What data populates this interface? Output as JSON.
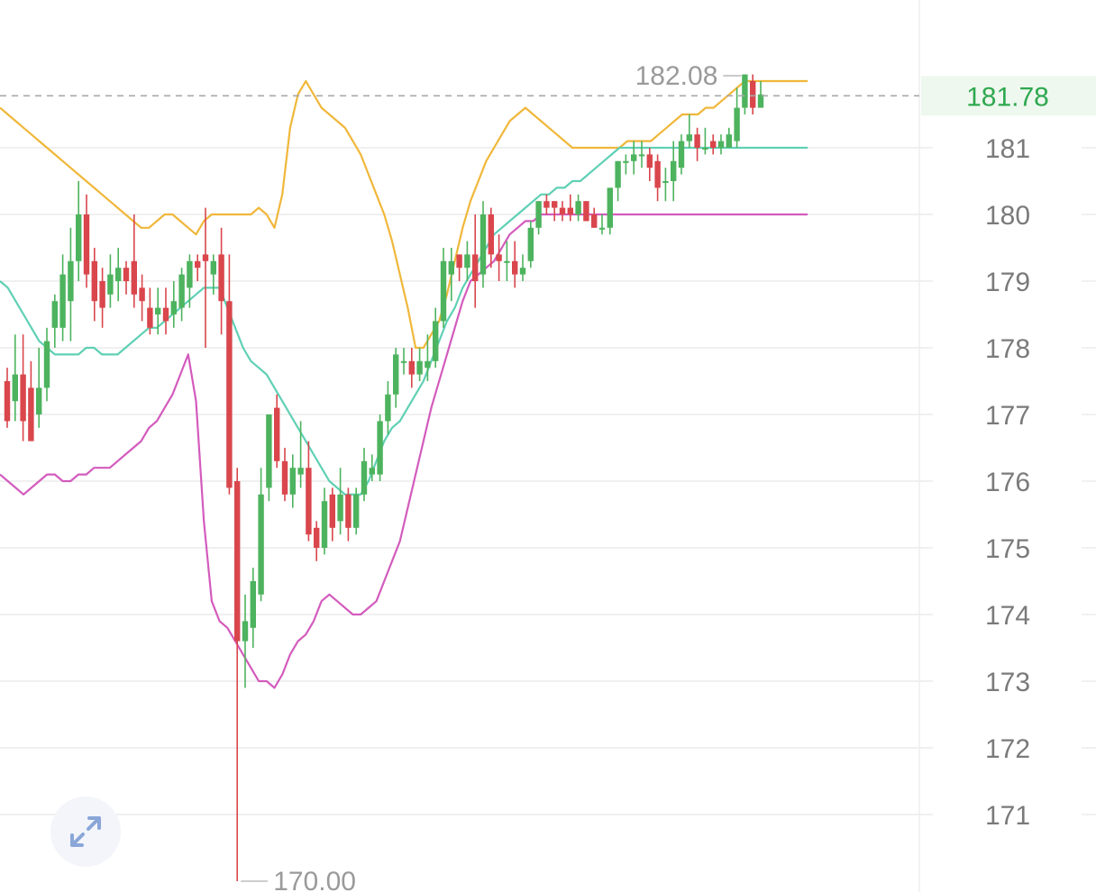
{
  "colors": {
    "up": "#4db35e",
    "down": "#d9464c",
    "band_upper": "#f0b73a",
    "band_middle": "#5fd0b4",
    "band_lower": "#d35bbd",
    "grid": "#ececec",
    "dashed": "#a8a8a8",
    "last_bg": "#eef8ef"
  },
  "controls": {
    "expand_icon": "expand-arrows-icon"
  },
  "chart_data": {
    "type": "candlestick",
    "ylim": [
      169.9,
      183.1
    ],
    "y_ticks": [
      171,
      172,
      173,
      174,
      175,
      176,
      177,
      178,
      179,
      180,
      181
    ],
    "last_price": 181.78,
    "last_price_label": "181.78",
    "max_marker": {
      "value": 182.08,
      "label": "182.08"
    },
    "min_marker": {
      "value": 170.0,
      "label": "170.00"
    },
    "candles": [
      [
        177.5,
        176.9,
        177.7,
        176.8
      ],
      [
        177.2,
        177.6,
        178.2,
        176.9
      ],
      [
        177.6,
        176.9,
        178.2,
        176.6
      ],
      [
        177.4,
        176.6,
        177.8,
        176.6
      ],
      [
        177.0,
        177.4,
        178.0,
        176.8
      ],
      [
        177.4,
        178.1,
        178.3,
        177.2
      ],
      [
        178.3,
        178.7,
        178.8,
        178.0
      ],
      [
        178.3,
        179.1,
        179.4,
        178.1
      ],
      [
        178.7,
        179.3,
        179.8,
        178.1
      ],
      [
        179.3,
        180.0,
        180.5,
        179.0
      ],
      [
        180.0,
        179.1,
        180.3,
        178.9
      ],
      [
        179.3,
        178.7,
        179.5,
        178.4
      ],
      [
        179.0,
        178.6,
        179.2,
        178.3
      ],
      [
        178.8,
        179.1,
        179.4,
        178.6
      ],
      [
        179.0,
        179.2,
        179.5,
        178.7
      ],
      [
        179.2,
        179.0,
        179.3,
        178.8
      ],
      [
        179.3,
        178.8,
        180.0,
        178.6
      ],
      [
        178.9,
        178.7,
        179.1,
        178.4
      ],
      [
        178.6,
        178.3,
        178.9,
        178.2
      ],
      [
        178.5,
        178.6,
        178.9,
        178.2
      ],
      [
        178.6,
        178.4,
        178.9,
        178.2
      ],
      [
        178.5,
        178.7,
        179.0,
        178.3
      ],
      [
        178.6,
        179.1,
        179.2,
        178.4
      ],
      [
        178.9,
        179.3,
        179.4,
        178.6
      ],
      [
        179.3,
        179.2,
        179.4,
        179.0
      ],
      [
        179.4,
        179.3,
        180.1,
        178.0
      ],
      [
        179.1,
        179.3,
        179.4,
        178.8
      ],
      [
        179.4,
        178.7,
        179.8,
        178.2
      ],
      [
        178.7,
        175.9,
        179.4,
        175.8
      ],
      [
        176.0,
        173.6,
        176.2,
        170.0
      ],
      [
        173.6,
        173.9,
        174.3,
        172.9
      ],
      [
        173.8,
        174.5,
        174.7,
        173.5
      ],
      [
        174.3,
        175.8,
        176.2,
        174.2
      ],
      [
        175.9,
        177.0,
        177.0,
        175.7
      ],
      [
        177.1,
        176.3,
        177.3,
        176.2
      ],
      [
        176.3,
        175.8,
        176.5,
        175.7
      ],
      [
        175.8,
        176.2,
        176.4,
        175.6
      ],
      [
        176.1,
        176.2,
        176.9,
        175.9
      ],
      [
        176.2,
        175.2,
        176.6,
        175.1
      ],
      [
        175.3,
        175.0,
        175.4,
        174.8
      ],
      [
        175.0,
        175.7,
        175.9,
        174.9
      ],
      [
        175.8,
        175.3,
        175.9,
        175.1
      ],
      [
        175.4,
        175.8,
        176.2,
        175.2
      ],
      [
        175.8,
        175.3,
        175.9,
        175.1
      ],
      [
        175.3,
        175.8,
        175.9,
        175.2
      ],
      [
        175.8,
        176.3,
        176.5,
        175.7
      ],
      [
        176.1,
        176.2,
        176.4,
        176.0
      ],
      [
        176.1,
        176.9,
        177.0,
        176.0
      ],
      [
        176.9,
        177.3,
        177.5,
        176.7
      ],
      [
        177.3,
        177.9,
        178.0,
        177.1
      ],
      [
        177.8,
        177.8,
        178.0,
        177.6
      ],
      [
        177.8,
        177.6,
        178.0,
        177.4
      ],
      [
        177.6,
        177.8,
        178.0,
        177.5
      ],
      [
        177.7,
        177.8,
        178.2,
        177.5
      ],
      [
        177.8,
        178.4,
        178.6,
        177.7
      ],
      [
        178.4,
        179.3,
        179.5,
        178.3
      ],
      [
        179.1,
        179.3,
        179.5,
        178.7
      ],
      [
        179.4,
        179.2,
        179.4,
        179.0
      ],
      [
        179.2,
        179.4,
        179.6,
        179.0
      ],
      [
        179.4,
        179.0,
        180.0,
        178.6
      ],
      [
        179.1,
        180.0,
        180.2,
        178.9
      ],
      [
        180.0,
        179.4,
        180.1,
        179.2
      ],
      [
        179.4,
        179.3,
        179.7,
        179.0
      ],
      [
        179.3,
        179.3,
        179.6,
        179.0
      ],
      [
        179.3,
        179.1,
        179.6,
        178.9
      ],
      [
        179.1,
        179.2,
        179.4,
        179.0
      ],
      [
        179.3,
        179.8,
        179.9,
        179.2
      ],
      [
        179.8,
        180.2,
        180.2,
        179.7
      ],
      [
        180.2,
        180.1,
        180.3,
        180.0
      ],
      [
        180.2,
        180.1,
        180.2,
        179.9
      ],
      [
        180.1,
        180.0,
        180.2,
        179.9
      ],
      [
        180.1,
        180.0,
        180.3,
        179.9
      ],
      [
        180.0,
        180.2,
        180.3,
        179.9
      ],
      [
        180.2,
        179.9,
        180.2,
        179.9
      ],
      [
        180.0,
        179.8,
        180.1,
        179.8
      ],
      [
        179.8,
        179.8,
        180.0,
        179.7
      ],
      [
        179.8,
        180.4,
        180.4,
        179.7
      ],
      [
        180.4,
        180.8,
        180.8,
        180.2
      ],
      [
        180.8,
        180.8,
        180.9,
        180.6
      ],
      [
        180.8,
        180.9,
        181.1,
        180.6
      ],
      [
        180.9,
        180.9,
        181.1,
        180.7
      ],
      [
        180.9,
        180.7,
        181.0,
        180.5
      ],
      [
        180.8,
        180.4,
        180.9,
        180.2
      ],
      [
        180.5,
        180.5,
        180.7,
        180.2
      ],
      [
        180.5,
        180.8,
        181.1,
        180.2
      ],
      [
        180.7,
        181.1,
        181.2,
        180.6
      ],
      [
        181.1,
        181.2,
        181.5,
        181.0
      ],
      [
        181.2,
        181.0,
        181.3,
        180.8
      ],
      [
        181.0,
        181.0,
        181.3,
        180.9
      ],
      [
        181.1,
        181.0,
        181.2,
        180.9
      ],
      [
        181.0,
        181.1,
        181.2,
        180.9
      ],
      [
        181.0,
        181.2,
        181.3,
        181.0
      ],
      [
        181.1,
        181.6,
        181.9,
        181.0
      ],
      [
        181.6,
        182.1,
        182.1,
        181.5
      ],
      [
        182.0,
        181.6,
        182.1,
        181.5
      ],
      [
        181.6,
        181.8,
        182.0,
        181.7
      ]
    ],
    "bands": {
      "x_start": 0,
      "x_step": 8.7,
      "upper": [
        181.6,
        181.5,
        181.4,
        181.3,
        181.2,
        181.1,
        181.0,
        180.9,
        180.8,
        180.7,
        180.6,
        180.5,
        180.4,
        180.3,
        180.2,
        180.1,
        180.0,
        179.9,
        179.8,
        179.8,
        179.9,
        180.0,
        180.0,
        179.9,
        179.8,
        179.7,
        179.9,
        180.0,
        180.0,
        180.0,
        180.0,
        180.0,
        180.0,
        180.1,
        180.0,
        179.8,
        180.3,
        181.3,
        181.8,
        182.0,
        181.8,
        181.6,
        181.5,
        181.4,
        181.3,
        181.1,
        180.9,
        180.6,
        180.3,
        180.0,
        179.6,
        179.1,
        178.6,
        178.0,
        178.0,
        178.2,
        178.4,
        178.8,
        179.3,
        179.8,
        180.2,
        180.5,
        180.8,
        181.0,
        181.2,
        181.4,
        181.5,
        181.6,
        181.5,
        181.4,
        181.3,
        181.2,
        181.1,
        181.0,
        181.0,
        181.0,
        181.0,
        181.0,
        181.0,
        181.0,
        181.1,
        181.1,
        181.1,
        181.1,
        181.2,
        181.3,
        181.4,
        181.5,
        181.5,
        181.5,
        181.6,
        181.6,
        181.7,
        181.8,
        181.9,
        182.0,
        182.0,
        182.0,
        182.0,
        182.0,
        182.0,
        182.0,
        182.0,
        182.0
      ],
      "middle": [
        179.0,
        178.9,
        178.7,
        178.5,
        178.3,
        178.1,
        178.0,
        177.9,
        177.9,
        177.9,
        177.9,
        178.0,
        178.0,
        177.9,
        177.9,
        177.9,
        178.0,
        178.1,
        178.2,
        178.3,
        178.3,
        178.4,
        178.5,
        178.6,
        178.7,
        178.8,
        178.9,
        178.9,
        178.9,
        178.6,
        178.3,
        178.0,
        177.8,
        177.7,
        177.6,
        177.4,
        177.2,
        177.0,
        176.8,
        176.6,
        176.4,
        176.2,
        176.0,
        175.9,
        175.8,
        175.8,
        175.8,
        176.0,
        176.3,
        176.6,
        176.8,
        176.9,
        177.1,
        177.3,
        177.5,
        177.8,
        178.1,
        178.4,
        178.6,
        178.9,
        179.1,
        179.3,
        179.5,
        179.7,
        179.8,
        179.9,
        180.0,
        180.1,
        180.2,
        180.3,
        180.3,
        180.4,
        180.4,
        180.5,
        180.5,
        180.6,
        180.7,
        180.8,
        180.9,
        181.0,
        181.0,
        181.0,
        181.0,
        181.0,
        181.0,
        181.0,
        181.0,
        181.0,
        181.0,
        181.0,
        181.0,
        181.0,
        181.0,
        181.0,
        181.0,
        181.0,
        181.0,
        181.0,
        181.0,
        181.0,
        181.0,
        181.0,
        181.0,
        181.0
      ],
      "lower": [
        176.1,
        176.0,
        175.9,
        175.8,
        175.9,
        176.0,
        176.1,
        176.1,
        176.0,
        176.0,
        176.1,
        176.1,
        176.2,
        176.2,
        176.2,
        176.3,
        176.4,
        176.5,
        176.6,
        176.8,
        176.9,
        177.1,
        177.3,
        177.6,
        177.9,
        177.2,
        175.4,
        174.2,
        173.9,
        173.8,
        173.6,
        173.4,
        173.2,
        173.0,
        173.0,
        172.9,
        173.1,
        173.4,
        173.6,
        173.7,
        173.9,
        174.2,
        174.3,
        174.2,
        174.1,
        174.0,
        174.0,
        174.1,
        174.2,
        174.5,
        174.8,
        175.1,
        175.6,
        176.1,
        176.6,
        177.1,
        177.5,
        177.9,
        178.3,
        178.7,
        179.0,
        179.1,
        179.2,
        179.3,
        179.5,
        179.7,
        179.8,
        179.9,
        179.9,
        180.0,
        180.0,
        180.0,
        180.0,
        180.0,
        180.0,
        180.0,
        180.0,
        180.0,
        180.0,
        180.0,
        180.0,
        180.0,
        180.0,
        180.0,
        180.0,
        180.0,
        180.0,
        180.0,
        180.0,
        180.0,
        180.0,
        180.0,
        180.0,
        180.0,
        180.0,
        180.0,
        180.0,
        180.0,
        180.0,
        180.0,
        180.0,
        180.0,
        180.0,
        180.0
      ]
    }
  }
}
